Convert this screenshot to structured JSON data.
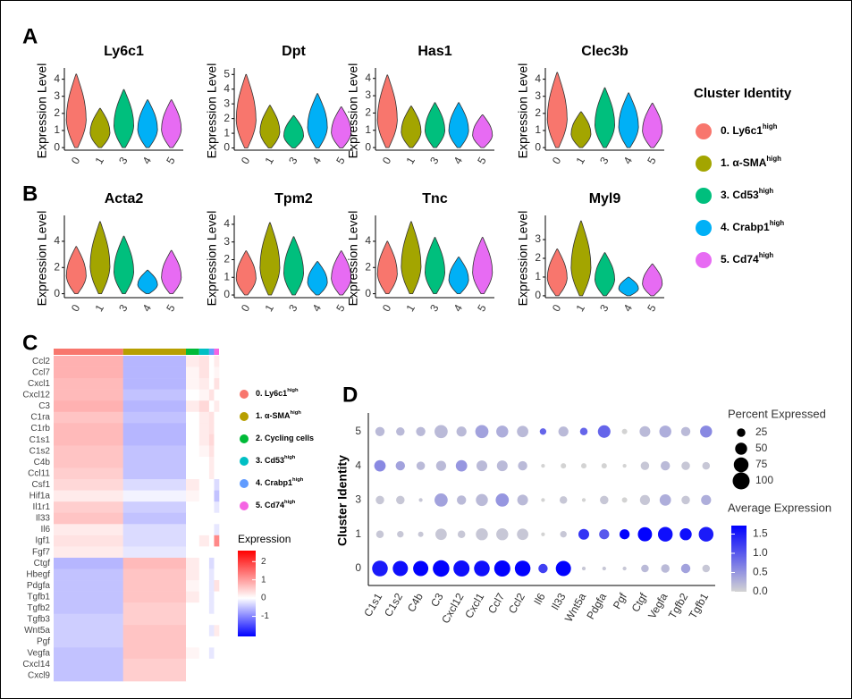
{
  "panel_labels": [
    "A",
    "B",
    "C",
    "D"
  ],
  "cluster_legend": {
    "title": "Cluster Identity",
    "items": [
      {
        "label": "0. Ly6c1",
        "sup": "high",
        "color": "#f8766d"
      },
      {
        "label": "1. α-SMA",
        "sup": "high",
        "color": "#a3a500"
      },
      {
        "label": "3. Cd53",
        "sup": "high",
        "color": "#00bf7d"
      },
      {
        "label": "4. Crabp1",
        "sup": "high",
        "color": "#00b0f6"
      },
      {
        "label": "5. Cd74",
        "sup": "high",
        "color": "#e76bf3"
      }
    ]
  },
  "chart_data": [
    {
      "type": "violin",
      "title": "Ly6c1",
      "y_label": "Expression Level",
      "categories": [
        "0",
        "1",
        "3",
        "4",
        "5"
      ],
      "values": [
        4.3,
        2.3,
        3.4,
        2.8,
        2.8
      ],
      "ylim": [
        -0.15,
        4.45
      ],
      "yticks": [
        0,
        1,
        2,
        3,
        4
      ]
    },
    {
      "type": "violin",
      "title": "Dpt",
      "y_label": "Expression Level",
      "categories": [
        "0",
        "1",
        "3",
        "4",
        "5"
      ],
      "values": [
        5.0,
        2.9,
        2.2,
        3.7,
        2.8
      ],
      "ylim": [
        -0.15,
        5.2
      ],
      "yticks": [
        0,
        1,
        2,
        3,
        4,
        5
      ]
    },
    {
      "type": "violin",
      "title": "Has1",
      "y_label": "Expression Level",
      "categories": [
        "0",
        "1",
        "3",
        "4",
        "5"
      ],
      "values": [
        4.2,
        2.4,
        2.6,
        2.6,
        1.9
      ],
      "ylim": [
        -0.15,
        4.4
      ],
      "yticks": [
        0,
        1,
        2,
        3,
        4
      ]
    },
    {
      "type": "violin",
      "title": "Clec3b",
      "y_label": "Expression Level",
      "categories": [
        "0",
        "1",
        "3",
        "4",
        "5"
      ],
      "values": [
        4.4,
        2.1,
        3.5,
        3.2,
        2.6
      ],
      "ylim": [
        -0.15,
        4.45
      ],
      "yticks": [
        0,
        1,
        2,
        3,
        4
      ]
    },
    {
      "type": "violin",
      "title": "Acta2",
      "y_label": "Expression Level",
      "categories": [
        "0",
        "1",
        "3",
        "4",
        "5"
      ],
      "values": [
        3.6,
        5.5,
        4.4,
        1.8,
        3.3
      ],
      "ylim": [
        -0.3,
        5.7
      ],
      "yticks": [
        0,
        2,
        4
      ]
    },
    {
      "type": "violin",
      "title": "Tpm2",
      "y_label": "Expression Level",
      "categories": [
        "0",
        "1",
        "3",
        "4",
        "5"
      ],
      "values": [
        2.5,
        4.1,
        3.3,
        1.9,
        2.5
      ],
      "ylim": [
        -0.15,
        4.3
      ],
      "yticks": [
        0,
        1,
        2,
        3,
        4
      ]
    },
    {
      "type": "violin",
      "title": "Tnc",
      "y_label": "Expression Level",
      "categories": [
        "0",
        "1",
        "3",
        "4",
        "5"
      ],
      "values": [
        4.0,
        5.5,
        4.3,
        2.8,
        4.3
      ],
      "ylim": [
        -0.3,
        5.7
      ],
      "yticks": [
        0,
        2,
        4
      ]
    },
    {
      "type": "violin",
      "title": "Myl9",
      "y_label": "Expression Level",
      "categories": [
        "0",
        "1",
        "3",
        "4",
        "5"
      ],
      "values": [
        2.5,
        4.0,
        2.3,
        1.0,
        1.7
      ],
      "ylim": [
        -0.1,
        4.1
      ],
      "yticks": [
        0,
        1,
        2,
        3
      ]
    },
    {
      "type": "heatmap",
      "rows": [
        "Ccl2",
        "Ccl7",
        "Cxcl1",
        "Cxcl12",
        "C3",
        "C1ra",
        "C1rb",
        "C1s1",
        "C1s2",
        "C4b",
        "Ccl11",
        "Csf1",
        "Hif1a",
        "Il1r1",
        "Il33",
        "Il6",
        "Igf1",
        "Fgf7",
        "Ctgf",
        "Hbegf",
        "Pdgfa",
        "Tgfb1",
        "Tgfb2",
        "Tgfb3",
        "Wnt5a",
        "Pgf",
        "Vegfa",
        "Cxcl14",
        "Cxcl9"
      ],
      "values": [
        [
          0.8,
          -0.6,
          0.2,
          0.3,
          0,
          0.2
        ],
        [
          0.8,
          -0.6,
          0.1,
          0.3,
          0,
          0.1
        ],
        [
          0.7,
          -0.6,
          0.1,
          0.2,
          0,
          0.3
        ],
        [
          0.7,
          -0.5,
          0,
          0.1,
          0.3,
          0
        ],
        [
          0.8,
          -0.6,
          0.2,
          0.4,
          0,
          0.2
        ],
        [
          0.6,
          -0.5,
          0,
          0.2,
          0.3,
          0
        ],
        [
          0.7,
          -0.6,
          0,
          0.2,
          0.3,
          0
        ],
        [
          0.7,
          -0.6,
          0,
          0.2,
          0.4,
          0
        ],
        [
          0.6,
          -0.5,
          0,
          0.1,
          0.3,
          0
        ],
        [
          0.6,
          -0.5,
          0,
          0,
          0.2,
          0
        ],
        [
          0.5,
          -0.5,
          0,
          0,
          0.2,
          0
        ],
        [
          0.4,
          -0.3,
          0.2,
          0,
          0,
          -0.3
        ],
        [
          0.2,
          -0.1,
          0.1,
          0,
          0,
          -0.5
        ],
        [
          0.5,
          -0.4,
          0,
          0,
          0,
          -0.2
        ],
        [
          0.6,
          -0.5,
          0,
          0,
          0,
          0
        ],
        [
          0.2,
          -0.3,
          0,
          0,
          0,
          -0.2
        ],
        [
          0.3,
          -0.3,
          0,
          0.2,
          0,
          1.2
        ],
        [
          0.2,
          -0.2,
          0,
          0,
          0,
          0
        ],
        [
          -0.6,
          0.7,
          0.2,
          0,
          -0.3,
          0
        ],
        [
          -0.5,
          0.6,
          0.2,
          0,
          -0.2,
          0
        ],
        [
          -0.5,
          0.6,
          0.1,
          0,
          -0.2,
          0.3
        ],
        [
          -0.5,
          0.6,
          0.2,
          0,
          -0.2,
          0
        ],
        [
          -0.5,
          0.5,
          0,
          0,
          -0.2,
          0
        ],
        [
          -0.4,
          0.5,
          0,
          0,
          0,
          0
        ],
        [
          -0.4,
          0.6,
          0,
          0,
          -0.2,
          0.2
        ],
        [
          -0.4,
          0.6,
          0,
          0,
          0,
          0
        ],
        [
          -0.5,
          0.6,
          0.1,
          0,
          -0.2,
          0
        ],
        [
          -0.5,
          0.5,
          0,
          0,
          0,
          0
        ],
        [
          -0.5,
          0.5,
          0,
          0,
          0,
          0
        ]
      ],
      "legend": {
        "items": [
          {
            "label": "0. Ly6c1",
            "sup": "high",
            "color": "#f8766d"
          },
          {
            "label": "1. α-SMA",
            "sup": "high",
            "color": "#b79f00"
          },
          {
            "label": "2. Cycling cells",
            "color": "#00ba38"
          },
          {
            "label": "3. Cd53",
            "sup": "high",
            "color": "#00bfc4"
          },
          {
            "label": "4. Crabp1",
            "sup": "high",
            "color": "#619cff"
          },
          {
            "label": "5. Cd74",
            "sup": "high",
            "color": "#f564e3"
          }
        ]
      },
      "colorbar": {
        "title": "Expression",
        "clim": [
          -2.1,
          2.6
        ],
        "ticks": [
          2,
          1,
          0,
          -1
        ],
        "colors": [
          "#0000ff",
          "#ffffff",
          "#ff0000"
        ]
      }
    },
    {
      "type": "dot",
      "y_label": "Cluster Identity",
      "categories": [
        "C1s1",
        "C1s2",
        "C4b",
        "C3",
        "Cxcl12",
        "Cxcl1",
        "Ccl7",
        "Ccl2",
        "Il6",
        "Il33",
        "Wnt5a",
        "Pdgfa",
        "Pgf",
        "Ctgf",
        "Vegfa",
        "Tgfb2",
        "Tgfb1"
      ],
      "series": [
        {
          "name": "0",
          "expression": [
            1.5,
            1.6,
            1.7,
            1.7,
            1.6,
            1.6,
            1.7,
            1.7,
            1.2,
            1.7,
            0.1,
            0.1,
            0.1,
            0.2,
            0.2,
            0.4,
            0.1
          ],
          "percent": [
            85,
            80,
            80,
            95,
            90,
            85,
            90,
            85,
            30,
            80,
            5,
            5,
            5,
            20,
            25,
            30,
            20
          ]
        },
        {
          "name": "1",
          "expression": [
            0.1,
            0.1,
            0.1,
            0.1,
            0.1,
            0.1,
            0.1,
            0.1,
            0,
            0.1,
            1.3,
            1.0,
            1.7,
            1.7,
            1.6,
            1.6,
            1.5
          ],
          "percent": [
            20,
            15,
            10,
            45,
            20,
            50,
            50,
            45,
            5,
            15,
            40,
            35,
            35,
            70,
            75,
            50,
            75
          ]
        },
        {
          "name": "3",
          "expression": [
            0.1,
            0.1,
            0.1,
            0.4,
            0.2,
            0.2,
            0.5,
            0.2,
            0,
            0.1,
            0,
            0.1,
            0,
            0.1,
            0.3,
            0.1,
            0.3
          ],
          "percent": [
            25,
            25,
            5,
            60,
            30,
            50,
            60,
            40,
            5,
            20,
            5,
            25,
            10,
            35,
            45,
            25,
            35
          ]
        },
        {
          "name": "4",
          "expression": [
            0.6,
            0.4,
            0.2,
            0.2,
            0.5,
            0.2,
            0.2,
            0.2,
            0,
            0,
            0,
            0,
            0,
            0.1,
            0.2,
            0.1,
            0.1
          ],
          "percent": [
            45,
            30,
            25,
            35,
            45,
            40,
            40,
            30,
            5,
            10,
            10,
            10,
            5,
            25,
            30,
            25,
            20
          ]
        },
        {
          "name": "5",
          "expression": [
            0.2,
            0.2,
            0.2,
            0.2,
            0.2,
            0.4,
            0.3,
            0.2,
            0.9,
            0.2,
            0.9,
            0.9,
            0,
            0.2,
            0.3,
            0.2,
            0.6
          ],
          "percent": [
            30,
            25,
            30,
            60,
            35,
            60,
            50,
            45,
            15,
            35,
            20,
            55,
            10,
            40,
            50,
            30,
            50
          ]
        }
      ],
      "size_legend": {
        "title": "Percent Expressed",
        "values": [
          25,
          50,
          75,
          100
        ]
      },
      "color_legend": {
        "title": "Average Expression",
        "clim": [
          0,
          1.72
        ],
        "ticks": [
          {
            "value": 0,
            "label": "0.0"
          },
          {
            "value": 0.5,
            "label": "0.5"
          },
          {
            "value": 1,
            "label": "1.0"
          },
          1.5
        ],
        "colors": [
          "#d3d3d3",
          "#0000ff"
        ]
      }
    }
  ]
}
